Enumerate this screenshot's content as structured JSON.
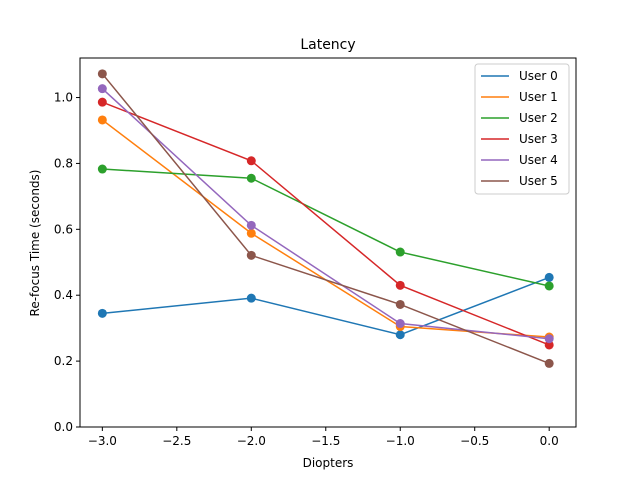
{
  "chart_data": {
    "type": "line",
    "title": "Latency",
    "xlabel": "Diopters",
    "ylabel": "Re-focus Time (seconds)",
    "x": [
      -3.0,
      -2.0,
      -1.0,
      0.0
    ],
    "xlim": [
      -3.15,
      0.18
    ],
    "ylim": [
      0.0,
      1.12
    ],
    "xticks": [
      -3.0,
      -2.5,
      -2.0,
      -1.5,
      -1.0,
      -0.5,
      0.0
    ],
    "xtick_labels": [
      "−3.0",
      "−2.5",
      "−2.0",
      "−1.5",
      "−1.0",
      "−0.5",
      "0.0"
    ],
    "yticks": [
      0.0,
      0.2,
      0.4,
      0.6,
      0.8,
      1.0
    ],
    "ytick_labels": [
      "0.0",
      "0.2",
      "0.4",
      "0.6",
      "0.8",
      "1.0"
    ],
    "grid": false,
    "legend_position": "top-right",
    "series": [
      {
        "name": "User 0",
        "color": "#1f77b4",
        "values": [
          0.345,
          0.391,
          0.28,
          0.454
        ]
      },
      {
        "name": "User 1",
        "color": "#ff7f0e",
        "values": [
          0.932,
          0.588,
          0.305,
          0.273
        ]
      },
      {
        "name": "User 2",
        "color": "#2ca02c",
        "values": [
          0.783,
          0.755,
          0.531,
          0.428
        ]
      },
      {
        "name": "User 3",
        "color": "#d62728",
        "values": [
          0.986,
          0.808,
          0.43,
          0.249
        ]
      },
      {
        "name": "User 4",
        "color": "#9467bd",
        "values": [
          1.027,
          0.612,
          0.314,
          0.268
        ]
      },
      {
        "name": "User 5",
        "color": "#8c564b",
        "values": [
          1.072,
          0.521,
          0.372,
          0.193
        ]
      }
    ]
  }
}
